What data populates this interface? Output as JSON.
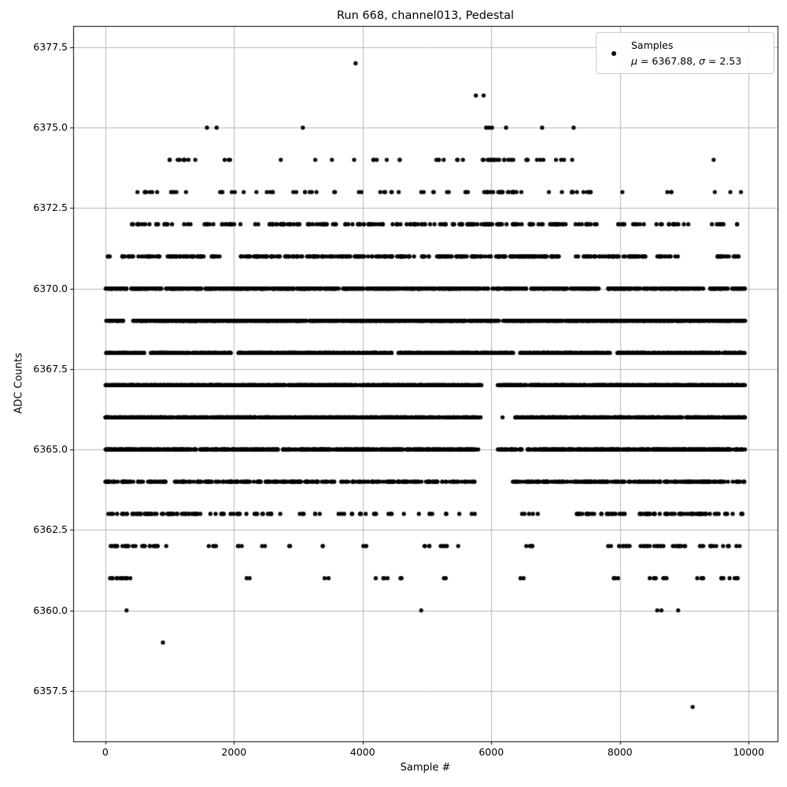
{
  "chart_data": {
    "type": "scatter",
    "title": "Run 668, channel013, Pedestal",
    "xlabel": "Sample #",
    "ylabel": "ADC Counts",
    "legend": {
      "label": "Samples",
      "mu_symbol": "μ",
      "mu_rest": " = 6367.88, ",
      "sigma_symbol": "σ",
      "sigma_rest": " = 2.53"
    },
    "stats": {
      "mu": 6367.88,
      "sigma": 2.53
    },
    "marker": {
      "shape": "dot",
      "color": "#000000",
      "radius_px": 2.6
    },
    "grid": true,
    "grid_color": "#b8b8b8",
    "spine_color": "#000000",
    "xlim": [
      -500,
      10450
    ],
    "ylim": [
      6355.93,
      6378.16
    ],
    "xticks": {
      "values": [
        0,
        2000,
        4000,
        6000,
        8000,
        10000
      ],
      "labels": [
        "0",
        "2000",
        "4000",
        "6000",
        "8000",
        "10000"
      ]
    },
    "yticks": {
      "values": [
        6357.5,
        6360.0,
        6362.5,
        6365.0,
        6367.5,
        6370.0,
        6372.5,
        6375.0,
        6377.5
      ],
      "labels": [
        "6357.5",
        "6360.0",
        "6362.5",
        "6365.0",
        "6367.5",
        "6370.0",
        "6372.5",
        "6375.0",
        "6377.5"
      ]
    },
    "n_points_visible_approx": 8900,
    "adc_levels_present": [
      6357,
      6359,
      6360,
      6361,
      6362,
      6363,
      6364,
      6365,
      6366,
      6367,
      6368,
      6369,
      6370,
      6371,
      6372,
      6373,
      6374,
      6375,
      6376,
      6377
    ],
    "outlier_points": [
      [
        3890,
        6377
      ],
      [
        5760,
        6376
      ],
      [
        5880,
        6376
      ],
      [
        1580,
        6375
      ],
      [
        1730,
        6375
      ],
      [
        3070,
        6375
      ],
      [
        5920,
        6375
      ],
      [
        5960,
        6375
      ],
      [
        6010,
        6375
      ],
      [
        6230,
        6375
      ],
      [
        6790,
        6375
      ],
      [
        7280,
        6375
      ],
      [
        330,
        6360
      ],
      [
        4910,
        6360
      ],
      [
        8580,
        6360
      ],
      [
        8645,
        6360
      ],
      [
        8905,
        6360
      ],
      [
        895,
        6359
      ],
      [
        9130,
        6357
      ]
    ],
    "bands": [
      {
        "adc": 6374,
        "segments": [
          [
            880,
            1520,
            9
          ],
          [
            1820,
            2000,
            3
          ],
          [
            2700,
            2760,
            1
          ],
          [
            3240,
            3300,
            1
          ],
          [
            3510,
            3570,
            1
          ],
          [
            3820,
            3880,
            1
          ],
          [
            4080,
            4230,
            3
          ],
          [
            4370,
            4420,
            1
          ],
          [
            4550,
            4680,
            2
          ],
          [
            5070,
            5330,
            4
          ],
          [
            5450,
            5600,
            3
          ],
          [
            5860,
            6460,
            16
          ],
          [
            6480,
            6630,
            3
          ],
          [
            6690,
            7150,
            6
          ],
          [
            7250,
            7310,
            1
          ],
          [
            9450,
            9500,
            1
          ]
        ]
      },
      {
        "adc": 6373,
        "segments": [
          [
            440,
            1550,
            12
          ],
          [
            1650,
            2250,
            6
          ],
          [
            2300,
            2650,
            5
          ],
          [
            2750,
            3300,
            7
          ],
          [
            3500,
            3620,
            2
          ],
          [
            3940,
            4060,
            2
          ],
          [
            4200,
            4600,
            6
          ],
          [
            4890,
            5010,
            2
          ],
          [
            5090,
            5360,
            4
          ],
          [
            5490,
            5710,
            3
          ],
          [
            5850,
            6550,
            24
          ],
          [
            6860,
            6940,
            1
          ],
          [
            7050,
            7600,
            11
          ],
          [
            8030,
            8100,
            1
          ],
          [
            8690,
            8850,
            3
          ],
          [
            9440,
            9510,
            1
          ],
          [
            9710,
            9780,
            1
          ],
          [
            9840,
            9910,
            1
          ]
        ]
      },
      {
        "adc": 6372,
        "segments": [
          [
            380,
            2250,
            34
          ],
          [
            2300,
            3600,
            38
          ],
          [
            3700,
            4350,
            20
          ],
          [
            4450,
            5300,
            24
          ],
          [
            5350,
            6600,
            44
          ],
          [
            6600,
            7650,
            30
          ],
          [
            7950,
            8400,
            10
          ],
          [
            8550,
            9150,
            12
          ],
          [
            9400,
            9850,
            8
          ]
        ]
      },
      {
        "adc": 6371,
        "segments": [
          [
            0,
            200,
            3
          ],
          [
            250,
            1550,
            62
          ],
          [
            1650,
            1800,
            8
          ],
          [
            2100,
            4800,
            136
          ],
          [
            4900,
            5050,
            8
          ],
          [
            5150,
            7100,
            118
          ],
          [
            7300,
            8400,
            54
          ],
          [
            8450,
            8900,
            12
          ],
          [
            9500,
            9850,
            19
          ]
        ]
      },
      {
        "adc": 6370,
        "segments": [
          [
            0,
            7680,
            660
          ],
          [
            7820,
            9300,
            128
          ],
          [
            9400,
            9950,
            52
          ]
        ]
      },
      {
        "adc": 6369,
        "segments": [
          [
            0,
            280,
            30
          ],
          [
            430,
            9950,
            1340
          ]
        ]
      },
      {
        "adc": 6368,
        "segments": [
          [
            0,
            620,
            70
          ],
          [
            700,
            1950,
            158
          ],
          [
            2050,
            4450,
            324
          ],
          [
            4550,
            6350,
            238
          ],
          [
            6450,
            7850,
            186
          ],
          [
            7950,
            9550,
            206
          ],
          [
            9600,
            9950,
            48
          ]
        ]
      },
      {
        "adc": 6367,
        "segments": [
          [
            0,
            5850,
            880
          ],
          [
            6100,
            9950,
            590
          ]
        ]
      },
      {
        "adc": 6366,
        "segments": [
          [
            0,
            5840,
            740
          ],
          [
            6140,
            6180,
            1
          ],
          [
            6350,
            9950,
            460
          ]
        ]
      },
      {
        "adc": 6365,
        "segments": [
          [
            0,
            5800,
            640
          ],
          [
            6100,
            6480,
            34
          ],
          [
            6550,
            9950,
            392
          ]
        ]
      },
      {
        "adc": 6364,
        "segments": [
          [
            0,
            950,
            58
          ],
          [
            1050,
            5750,
            272
          ],
          [
            6300,
            9950,
            226
          ]
        ]
      },
      {
        "adc": 6363,
        "segments": [
          [
            30,
            1480,
            54
          ],
          [
            1550,
            5750,
            54
          ],
          [
            6450,
            6760,
            5
          ],
          [
            7300,
            9950,
            84
          ]
        ]
      },
      {
        "adc": 6362,
        "segments": [
          [
            30,
            950,
            27
          ],
          [
            1600,
            1760,
            4
          ],
          [
            2050,
            2160,
            3
          ],
          [
            2400,
            2500,
            2
          ],
          [
            2800,
            2900,
            2
          ],
          [
            3300,
            3400,
            2
          ],
          [
            3990,
            4110,
            3
          ],
          [
            4940,
            5060,
            4
          ],
          [
            5200,
            5500,
            6
          ],
          [
            6450,
            6660,
            5
          ],
          [
            7800,
            8200,
            10
          ],
          [
            8300,
            8700,
            12
          ],
          [
            8750,
            9100,
            9
          ],
          [
            9200,
            9500,
            8
          ],
          [
            9600,
            9900,
            6
          ]
        ]
      },
      {
        "adc": 6361,
        "segments": [
          [
            30,
            450,
            12
          ],
          [
            2150,
            2250,
            2
          ],
          [
            3400,
            3500,
            2
          ],
          [
            4200,
            4400,
            4
          ],
          [
            4550,
            4620,
            2
          ],
          [
            5200,
            5300,
            2
          ],
          [
            6450,
            6520,
            2
          ],
          [
            7900,
            8000,
            3
          ],
          [
            8450,
            8560,
            4
          ],
          [
            8650,
            8760,
            3
          ],
          [
            9200,
            9360,
            4
          ],
          [
            9500,
            9620,
            3
          ],
          [
            9700,
            9860,
            4
          ]
        ]
      }
    ]
  }
}
